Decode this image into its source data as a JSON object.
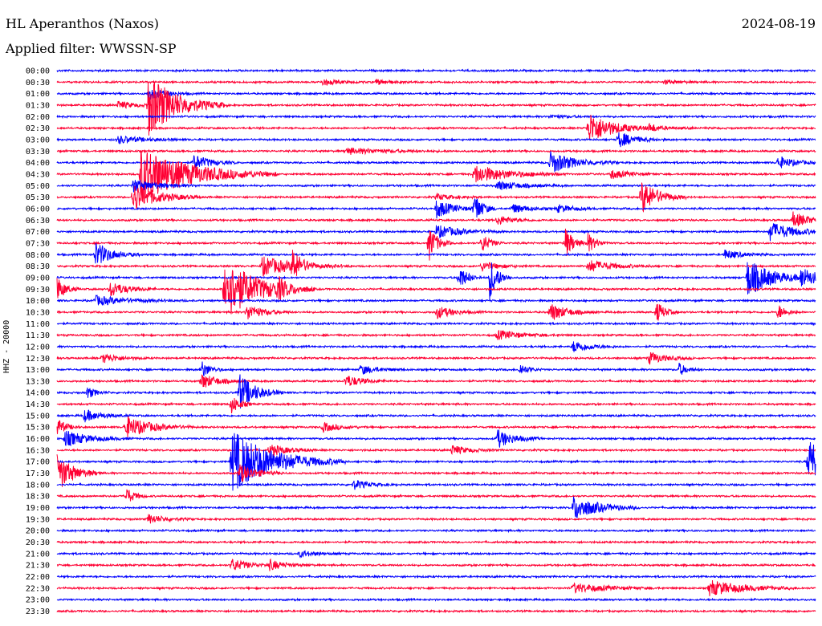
{
  "header": {
    "station": "HL Aperanthos (Naxos)",
    "date": "2024-08-19",
    "filter": "Applied filter: WWSSN-SP"
  },
  "chart_data": {
    "type": "line",
    "subtype": "helicorder",
    "ylabel": "HHZ - 20000",
    "colors": [
      "#0000ff",
      "#ff0033"
    ],
    "rows": [
      {
        "time": "00:00",
        "events": []
      },
      {
        "time": "00:30",
        "events": [
          [
            0.35,
            0.1,
            0.02
          ],
          [
            0.42,
            0.08,
            0.02
          ],
          [
            0.8,
            0.06,
            0.02
          ]
        ]
      },
      {
        "time": "01:00",
        "events": [
          [
            0.12,
            0.2,
            0.02
          ]
        ]
      },
      {
        "time": "01:30",
        "events": [
          [
            0.12,
            1.0,
            0.035
          ],
          [
            0.08,
            0.12,
            0.02
          ]
        ]
      },
      {
        "time": "02:00",
        "events": [
          [
            0.65,
            0.05,
            0.02
          ]
        ]
      },
      {
        "time": "02:30",
        "events": [
          [
            0.7,
            0.5,
            0.03
          ],
          [
            0.78,
            0.1,
            0.02
          ]
        ]
      },
      {
        "time": "03:00",
        "events": [
          [
            0.08,
            0.12,
            0.03
          ],
          [
            0.74,
            0.25,
            0.02
          ]
        ]
      },
      {
        "time": "03:30",
        "events": [
          [
            0.38,
            0.1,
            0.05
          ]
        ]
      },
      {
        "time": "04:00",
        "events": [
          [
            0.18,
            0.25,
            0.02
          ],
          [
            0.65,
            0.35,
            0.03
          ],
          [
            0.95,
            0.2,
            0.02
          ]
        ]
      },
      {
        "time": "04:30",
        "events": [
          [
            0.11,
            0.9,
            0.06
          ],
          [
            0.55,
            0.3,
            0.04
          ],
          [
            0.73,
            0.15,
            0.02
          ]
        ]
      },
      {
        "time": "05:00",
        "events": [
          [
            0.1,
            0.2,
            0.03
          ],
          [
            0.58,
            0.15,
            0.03
          ]
        ]
      },
      {
        "time": "05:30",
        "events": [
          [
            0.1,
            0.45,
            0.03
          ],
          [
            0.77,
            0.55,
            0.02
          ],
          [
            0.5,
            0.1,
            0.02
          ]
        ]
      },
      {
        "time": "06:00",
        "events": [
          [
            0.5,
            0.3,
            0.02
          ],
          [
            0.55,
            0.5,
            0.01
          ],
          [
            0.6,
            0.15,
            0.02
          ],
          [
            0.66,
            0.12,
            0.02
          ]
        ]
      },
      {
        "time": "06:30",
        "events": [
          [
            0.58,
            0.15,
            0.02
          ],
          [
            0.97,
            0.25,
            0.02
          ]
        ]
      },
      {
        "time": "07:00",
        "events": [
          [
            0.5,
            0.2,
            0.03
          ],
          [
            0.94,
            0.3,
            0.03
          ]
        ]
      },
      {
        "time": "07:30",
        "events": [
          [
            0.49,
            0.6,
            0.01
          ],
          [
            0.56,
            0.3,
            0.01
          ],
          [
            0.67,
            0.5,
            0.01
          ],
          [
            0.7,
            0.3,
            0.01
          ]
        ]
      },
      {
        "time": "08:00",
        "events": [
          [
            0.05,
            0.4,
            0.02
          ],
          [
            0.88,
            0.15,
            0.02
          ]
        ]
      },
      {
        "time": "08:30",
        "events": [
          [
            0.27,
            0.3,
            0.04
          ],
          [
            0.31,
            0.5,
            0.01
          ],
          [
            0.56,
            0.15,
            0.02
          ],
          [
            0.7,
            0.2,
            0.03
          ]
        ]
      },
      {
        "time": "09:00",
        "events": [
          [
            0.53,
            0.4,
            0.01
          ],
          [
            0.57,
            0.7,
            0.01
          ],
          [
            0.91,
            0.6,
            0.03
          ],
          [
            0.98,
            0.3,
            0.02
          ]
        ]
      },
      {
        "time": "09:30",
        "events": [
          [
            0.0,
            0.4,
            0.01
          ],
          [
            0.07,
            0.25,
            0.02
          ],
          [
            0.22,
            1.0,
            0.04
          ],
          [
            0.29,
            0.3,
            0.01
          ]
        ]
      },
      {
        "time": "10:00",
        "events": [
          [
            0.05,
            0.15,
            0.04
          ]
        ]
      },
      {
        "time": "10:30",
        "events": [
          [
            0.25,
            0.25,
            0.02
          ],
          [
            0.5,
            0.2,
            0.02
          ],
          [
            0.65,
            0.3,
            0.02
          ],
          [
            0.79,
            0.35,
            0.01
          ],
          [
            0.95,
            0.25,
            0.01
          ]
        ]
      },
      {
        "time": "11:00",
        "events": []
      },
      {
        "time": "11:30",
        "events": [
          [
            0.58,
            0.15,
            0.03
          ]
        ]
      },
      {
        "time": "12:00",
        "events": [
          [
            0.68,
            0.2,
            0.02
          ]
        ]
      },
      {
        "time": "12:30",
        "events": [
          [
            0.06,
            0.15,
            0.02
          ],
          [
            0.78,
            0.2,
            0.02
          ]
        ]
      },
      {
        "time": "13:00",
        "events": [
          [
            0.19,
            0.3,
            0.01
          ],
          [
            0.4,
            0.15,
            0.02
          ],
          [
            0.61,
            0.2,
            0.01
          ],
          [
            0.82,
            0.2,
            0.01
          ]
        ]
      },
      {
        "time": "13:30",
        "events": [
          [
            0.19,
            0.25,
            0.02
          ],
          [
            0.38,
            0.2,
            0.02
          ]
        ]
      },
      {
        "time": "14:00",
        "events": [
          [
            0.04,
            0.2,
            0.01
          ],
          [
            0.24,
            0.6,
            0.02
          ]
        ]
      },
      {
        "time": "14:30",
        "events": [
          [
            0.23,
            0.3,
            0.01
          ]
        ]
      },
      {
        "time": "15:00",
        "events": [
          [
            0.035,
            0.2,
            0.02
          ]
        ]
      },
      {
        "time": "15:30",
        "events": [
          [
            0.0,
            0.3,
            0.01
          ],
          [
            0.09,
            0.35,
            0.03
          ],
          [
            0.35,
            0.15,
            0.02
          ]
        ]
      },
      {
        "time": "16:00",
        "events": [
          [
            0.01,
            0.25,
            0.03
          ],
          [
            0.58,
            0.3,
            0.02
          ]
        ]
      },
      {
        "time": "16:30",
        "events": [
          [
            0.28,
            0.2,
            0.02
          ],
          [
            0.52,
            0.15,
            0.02
          ]
        ]
      },
      {
        "time": "17:00",
        "events": [
          [
            0.23,
            1.0,
            0.05
          ],
          [
            0.99,
            0.8,
            0.02
          ]
        ]
      },
      {
        "time": "17:30",
        "events": [
          [
            0.0,
            0.6,
            0.02
          ],
          [
            0.24,
            0.3,
            0.02
          ]
        ]
      },
      {
        "time": "18:00",
        "events": [
          [
            0.39,
            0.15,
            0.02
          ]
        ]
      },
      {
        "time": "18:30",
        "events": [
          [
            0.09,
            0.3,
            0.01
          ]
        ]
      },
      {
        "time": "19:00",
        "events": [
          [
            0.68,
            0.4,
            0.03
          ]
        ]
      },
      {
        "time": "19:30",
        "events": [
          [
            0.12,
            0.15,
            0.02
          ]
        ]
      },
      {
        "time": "20:00",
        "events": []
      },
      {
        "time": "20:30",
        "events": []
      },
      {
        "time": "21:00",
        "events": [
          [
            0.32,
            0.1,
            0.02
          ]
        ]
      },
      {
        "time": "21:30",
        "events": [
          [
            0.23,
            0.2,
            0.02
          ],
          [
            0.28,
            0.15,
            0.02
          ]
        ]
      },
      {
        "time": "22:00",
        "events": []
      },
      {
        "time": "22:30",
        "events": [
          [
            0.68,
            0.15,
            0.04
          ],
          [
            0.86,
            0.25,
            0.04
          ]
        ]
      },
      {
        "time": "23:00",
        "events": []
      },
      {
        "time": "23:30",
        "events": []
      }
    ]
  }
}
